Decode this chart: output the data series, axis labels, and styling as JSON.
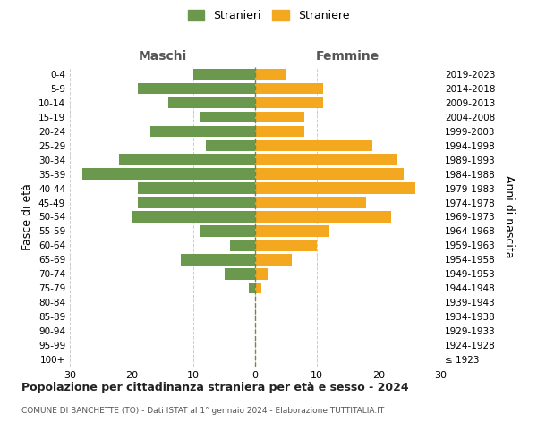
{
  "age_groups": [
    "100+",
    "95-99",
    "90-94",
    "85-89",
    "80-84",
    "75-79",
    "70-74",
    "65-69",
    "60-64",
    "55-59",
    "50-54",
    "45-49",
    "40-44",
    "35-39",
    "30-34",
    "25-29",
    "20-24",
    "15-19",
    "10-14",
    "5-9",
    "0-4"
  ],
  "birth_years": [
    "≤ 1923",
    "1924-1928",
    "1929-1933",
    "1934-1938",
    "1939-1943",
    "1944-1948",
    "1949-1953",
    "1954-1958",
    "1959-1963",
    "1964-1968",
    "1969-1973",
    "1974-1978",
    "1979-1983",
    "1984-1988",
    "1989-1993",
    "1994-1998",
    "1999-2003",
    "2004-2008",
    "2009-2013",
    "2014-2018",
    "2019-2023"
  ],
  "maschi": [
    0,
    0,
    0,
    0,
    0,
    1,
    5,
    12,
    4,
    9,
    20,
    19,
    19,
    28,
    22,
    8,
    17,
    9,
    14,
    19,
    10
  ],
  "femmine": [
    0,
    0,
    0,
    0,
    0,
    1,
    2,
    6,
    10,
    12,
    22,
    18,
    26,
    24,
    23,
    19,
    8,
    8,
    11,
    11,
    5
  ],
  "color_maschi": "#6a994e",
  "color_femmine": "#f4a820",
  "color_grid": "#cccccc",
  "color_dashed": "#808040",
  "title": "Popolazione per cittadinanza straniera per età e sesso - 2024",
  "subtitle": "COMUNE DI BANCHETTE (TO) - Dati ISTAT al 1° gennaio 2024 - Elaborazione TUTTITALIA.IT",
  "ylabel_left": "Fasce di età",
  "ylabel_right": "Anni di nascita",
  "label_maschi": "Maschi",
  "label_femmine": "Femmine",
  "legend_maschi": "Stranieri",
  "legend_femmine": "Straniere",
  "xlim": 30,
  "background_color": "#ffffff"
}
